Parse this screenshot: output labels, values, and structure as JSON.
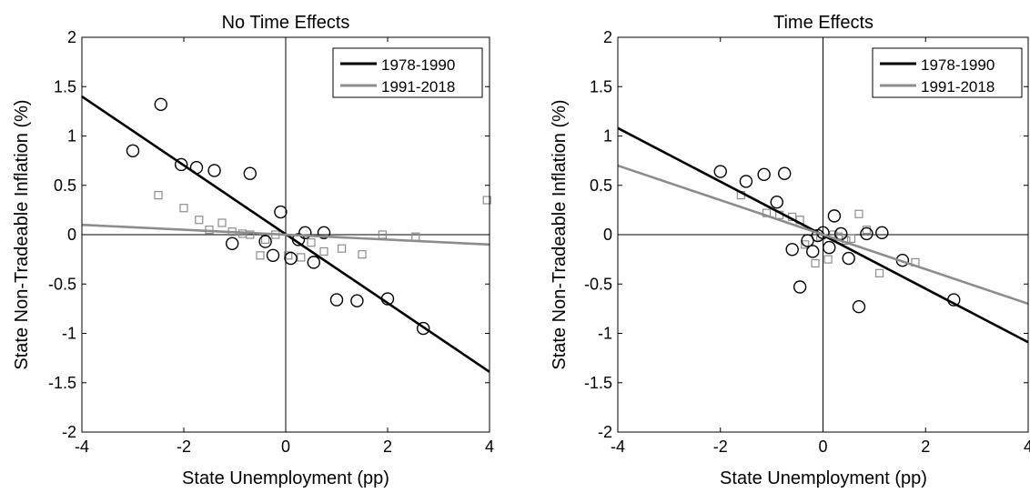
{
  "chart_data": [
    {
      "type": "scatter",
      "title": "No Time Effects",
      "xlabel": "State Unemployment (pp)",
      "ylabel": "State Non-Tradeable Inflation (%)",
      "xlim": [
        -4,
        4
      ],
      "ylim": [
        -2,
        2
      ],
      "xticks": [
        "-4",
        "-2",
        "0",
        "2",
        "4"
      ],
      "yticks": [
        "2",
        "1.5",
        "1",
        "0.5",
        "0",
        "-0.5",
        "-1",
        "-1.5",
        "-2"
      ],
      "legend_position": "top-right",
      "series": [
        {
          "name": "1978-1990",
          "color": "#000000",
          "marker": "circle",
          "fit_line": [
            [
              -4,
              1.4
            ],
            [
              4,
              -1.39
            ]
          ],
          "points": [
            [
              -2.45,
              1.32
            ],
            [
              -3.0,
              0.85
            ],
            [
              -2.05,
              0.71
            ],
            [
              -1.75,
              0.68
            ],
            [
              -1.4,
              0.65
            ],
            [
              -0.7,
              0.62
            ],
            [
              -0.1,
              0.23
            ],
            [
              -1.05,
              -0.09
            ],
            [
              -0.4,
              -0.07
            ],
            [
              -0.25,
              -0.21
            ],
            [
              0.1,
              -0.24
            ],
            [
              0.25,
              -0.05
            ],
            [
              0.38,
              0.02
            ],
            [
              0.55,
              -0.28
            ],
            [
              0.75,
              0.02
            ],
            [
              1.0,
              -0.66
            ],
            [
              1.4,
              -0.67
            ],
            [
              2.0,
              -0.65
            ],
            [
              2.7,
              -0.95
            ]
          ]
        },
        {
          "name": "1991-2018",
          "color": "#8c8c8c",
          "marker": "square",
          "fit_line": [
            [
              -4,
              0.1
            ],
            [
              4,
              -0.1
            ]
          ],
          "points": [
            [
              -2.5,
              0.4
            ],
            [
              -2.0,
              0.27
            ],
            [
              -1.7,
              0.15
            ],
            [
              -1.5,
              0.05
            ],
            [
              -1.25,
              0.12
            ],
            [
              -1.05,
              0.03
            ],
            [
              -0.85,
              0.01
            ],
            [
              -0.7,
              0.0
            ],
            [
              -0.5,
              -0.21
            ],
            [
              -0.4,
              -0.05
            ],
            [
              -0.2,
              0.0
            ],
            [
              0.05,
              -0.21
            ],
            [
              0.3,
              -0.23
            ],
            [
              0.5,
              -0.08
            ],
            [
              0.75,
              -0.17
            ],
            [
              1.1,
              -0.14
            ],
            [
              1.5,
              -0.2
            ],
            [
              1.9,
              0.0
            ],
            [
              2.55,
              -0.02
            ],
            [
              3.95,
              0.35
            ]
          ]
        }
      ]
    },
    {
      "type": "scatter",
      "title": "Time Effects",
      "xlabel": "State Unemployment (pp)",
      "ylabel": "State Non-Tradeable Inflation (%)",
      "xlim": [
        -4,
        4
      ],
      "ylim": [
        -2,
        2
      ],
      "xticks": [
        "-4",
        "-2",
        "0",
        "2",
        "4"
      ],
      "yticks": [
        "2",
        "1.5",
        "1",
        "0.5",
        "0",
        "-0.5",
        "-1",
        "-1.5",
        "-2"
      ],
      "legend_position": "top-right",
      "series": [
        {
          "name": "1978-1990",
          "color": "#000000",
          "marker": "circle",
          "fit_line": [
            [
              -4,
              1.08
            ],
            [
              4,
              -1.09
            ]
          ],
          "points": [
            [
              -2.0,
              0.64
            ],
            [
              -1.5,
              0.54
            ],
            [
              -1.15,
              0.61
            ],
            [
              -0.75,
              0.62
            ],
            [
              -0.9,
              0.33
            ],
            [
              -0.6,
              -0.15
            ],
            [
              -0.45,
              -0.53
            ],
            [
              -0.3,
              -0.06
            ],
            [
              -0.2,
              -0.17
            ],
            [
              -0.1,
              -0.01
            ],
            [
              0.0,
              0.02
            ],
            [
              0.12,
              -0.13
            ],
            [
              0.22,
              0.19
            ],
            [
              0.35,
              0.01
            ],
            [
              0.5,
              -0.24
            ],
            [
              0.7,
              -0.73
            ],
            [
              0.85,
              0.01
            ],
            [
              1.15,
              0.02
            ],
            [
              1.55,
              -0.26
            ],
            [
              2.55,
              -0.66
            ]
          ]
        },
        {
          "name": "1991-2018",
          "color": "#8c8c8c",
          "marker": "square",
          "fit_line": [
            [
              -4,
              0.7
            ],
            [
              4,
              -0.7
            ]
          ],
          "points": [
            [
              -1.6,
              0.4
            ],
            [
              -1.1,
              0.22
            ],
            [
              -0.85,
              0.2
            ],
            [
              -0.6,
              0.18
            ],
            [
              -0.45,
              0.15
            ],
            [
              -0.35,
              -0.1
            ],
            [
              -0.15,
              -0.29
            ],
            [
              -0.05,
              -0.02
            ],
            [
              0.1,
              -0.25
            ],
            [
              0.2,
              0.0
            ],
            [
              0.3,
              -0.02
            ],
            [
              0.45,
              -0.06
            ],
            [
              0.55,
              -0.04
            ],
            [
              0.7,
              0.21
            ],
            [
              0.85,
              0.05
            ],
            [
              1.1,
              -0.39
            ],
            [
              1.8,
              -0.28
            ]
          ]
        }
      ]
    }
  ]
}
